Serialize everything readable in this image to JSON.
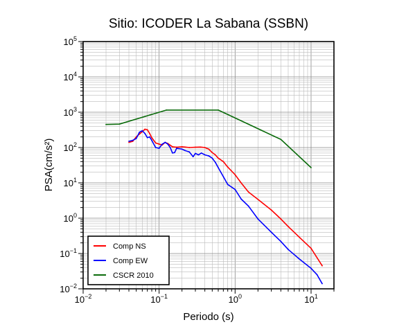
{
  "chart_data": {
    "type": "line",
    "title": "Sitio: ICODER La Sabana (SSBN)",
    "xlabel": "Periodo (s)",
    "ylabel": "PSA(cm/s²)",
    "xscale": "log",
    "yscale": "log",
    "xlim": [
      0.01,
      20
    ],
    "ylim": [
      0.01,
      100000
    ],
    "x_ticks": [
      {
        "value": 0.01,
        "base": "10",
        "exp": "−2"
      },
      {
        "value": 0.1,
        "base": "10",
        "exp": "−1"
      },
      {
        "value": 1,
        "base": "10",
        "exp": "0"
      },
      {
        "value": 10,
        "base": "10",
        "exp": "1"
      }
    ],
    "y_ticks": [
      {
        "value": 0.01,
        "base": "10",
        "exp": "−2"
      },
      {
        "value": 0.1,
        "base": "10",
        "exp": "−1"
      },
      {
        "value": 1,
        "base": "10",
        "exp": "0"
      },
      {
        "value": 10,
        "base": "10",
        "exp": "1"
      },
      {
        "value": 100,
        "base": "10",
        "exp": "2"
      },
      {
        "value": 1000,
        "base": "10",
        "exp": "3"
      },
      {
        "value": 10000,
        "base": "10",
        "exp": "4"
      },
      {
        "value": 100000,
        "base": "10",
        "exp": "5"
      }
    ],
    "grid": true,
    "legend_position": "bottom-left",
    "series": [
      {
        "name": "Comp NS",
        "color": "#ff0000",
        "points": [
          [
            0.04,
            140
          ],
          [
            0.045,
            150
          ],
          [
            0.05,
            200
          ],
          [
            0.055,
            240
          ],
          [
            0.06,
            280
          ],
          [
            0.065,
            330
          ],
          [
            0.07,
            320
          ],
          [
            0.075,
            250
          ],
          [
            0.08,
            190
          ],
          [
            0.09,
            135
          ],
          [
            0.1,
            125
          ],
          [
            0.11,
            118
          ],
          [
            0.12,
            140
          ],
          [
            0.13,
            130
          ],
          [
            0.15,
            105
          ],
          [
            0.17,
            102
          ],
          [
            0.2,
            105
          ],
          [
            0.22,
            103
          ],
          [
            0.25,
            100
          ],
          [
            0.3,
            102
          ],
          [
            0.35,
            103
          ],
          [
            0.4,
            100
          ],
          [
            0.45,
            90
          ],
          [
            0.5,
            72
          ],
          [
            0.55,
            62
          ],
          [
            0.6,
            50
          ],
          [
            0.7,
            40
          ],
          [
            0.8,
            28
          ],
          [
            1.0,
            17
          ],
          [
            1.2,
            10
          ],
          [
            1.5,
            5.5
          ],
          [
            2,
            3.4
          ],
          [
            3,
            1.7
          ],
          [
            4,
            0.95
          ],
          [
            5,
            0.58
          ],
          [
            7,
            0.29
          ],
          [
            10,
            0.14
          ],
          [
            14,
            0.045
          ]
        ]
      },
      {
        "name": "Comp EW",
        "color": "#0000ff",
        "points": [
          [
            0.04,
            150
          ],
          [
            0.045,
            160
          ],
          [
            0.05,
            180
          ],
          [
            0.055,
            270
          ],
          [
            0.06,
            300
          ],
          [
            0.065,
            250
          ],
          [
            0.07,
            190
          ],
          [
            0.075,
            200
          ],
          [
            0.08,
            160
          ],
          [
            0.09,
            100
          ],
          [
            0.1,
            95
          ],
          [
            0.11,
            125
          ],
          [
            0.12,
            140
          ],
          [
            0.13,
            125
          ],
          [
            0.14,
            100
          ],
          [
            0.15,
            70
          ],
          [
            0.16,
            72
          ],
          [
            0.17,
            95
          ],
          [
            0.2,
            90
          ],
          [
            0.22,
            82
          ],
          [
            0.25,
            75
          ],
          [
            0.28,
            55
          ],
          [
            0.3,
            68
          ],
          [
            0.33,
            62
          ],
          [
            0.36,
            70
          ],
          [
            0.4,
            62
          ],
          [
            0.45,
            58
          ],
          [
            0.5,
            50
          ],
          [
            0.55,
            38
          ],
          [
            0.6,
            27
          ],
          [
            0.7,
            15
          ],
          [
            0.8,
            9
          ],
          [
            1.0,
            6.5
          ],
          [
            1.2,
            3.5
          ],
          [
            1.5,
            2.2
          ],
          [
            2,
            0.95
          ],
          [
            3,
            0.4
          ],
          [
            4,
            0.22
          ],
          [
            5,
            0.13
          ],
          [
            7,
            0.07
          ],
          [
            10,
            0.038
          ],
          [
            12,
            0.025
          ],
          [
            14,
            0.014
          ]
        ]
      },
      {
        "name": "CSCR 2010",
        "color": "#0b6b0b",
        "points": [
          [
            0.02,
            450
          ],
          [
            0.03,
            460
          ],
          [
            0.125,
            1150
          ],
          [
            0.6,
            1150
          ],
          [
            4.0,
            170
          ],
          [
            10,
            27
          ]
        ]
      }
    ]
  }
}
